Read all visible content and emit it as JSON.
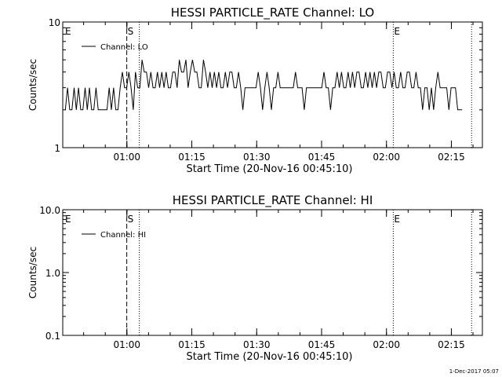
{
  "chart_data": [
    {
      "type": "line",
      "title": "HESSI PARTICLE_RATE Channel: LO",
      "xlabel": "Start Time (20-Nov-16 00:45:10)",
      "ylabel": "Counts/sec",
      "y_scale": "log",
      "ylim": [
        1,
        10
      ],
      "y_ticks": [
        "1",
        "10"
      ],
      "x_range_minutes": [
        0,
        97
      ],
      "x_ticks": [
        {
          "label": "01:00",
          "minute": 14.83
        },
        {
          "label": "01:15",
          "minute": 29.83
        },
        {
          "label": "01:30",
          "minute": 44.83
        },
        {
          "label": "01:45",
          "minute": 59.83
        },
        {
          "label": "02:00",
          "minute": 74.83
        },
        {
          "label": "02:15",
          "minute": 89.83
        }
      ],
      "legend": {
        "position": "top-left",
        "label": "Channel: LO"
      },
      "markers": [
        {
          "label": "E",
          "minute": 0.0,
          "style": "none"
        },
        {
          "label": "S",
          "minute": 14.8,
          "style": "dashed"
        },
        {
          "label": "",
          "minute": 17.7,
          "style": "dotted"
        },
        {
          "label": "E",
          "minute": 76.4,
          "style": "dotted"
        },
        {
          "label": "",
          "minute": 94.5,
          "style": "dotted"
        }
      ],
      "series": [
        {
          "name": "Channel: LO",
          "values": [
            2,
            3,
            2,
            2,
            3,
            2,
            3,
            2,
            2,
            3,
            2,
            3,
            2,
            2,
            3,
            2,
            2,
            2,
            2,
            2,
            3,
            2,
            3,
            2,
            2,
            3,
            4,
            3,
            3,
            4,
            3,
            2,
            4,
            3,
            3,
            5,
            4,
            4,
            3,
            4,
            3,
            3,
            4,
            3,
            4,
            3,
            4,
            3,
            3,
            4,
            4,
            3,
            5,
            4,
            4,
            5,
            3,
            4,
            5,
            4,
            4,
            3,
            3,
            5,
            4,
            3,
            4,
            3,
            4,
            3,
            4,
            3,
            3,
            4,
            3,
            4,
            4,
            3,
            3,
            4,
            3,
            2,
            3,
            3,
            3,
            3,
            3,
            3,
            4,
            3,
            2,
            3,
            4,
            3,
            2,
            3,
            3,
            4,
            3,
            3,
            3,
            3,
            3,
            3,
            3,
            4,
            3,
            3,
            3,
            2,
            3,
            3,
            3,
            3,
            3,
            3,
            3,
            3,
            4,
            3,
            3,
            2,
            3,
            3,
            4,
            3,
            4,
            3,
            3,
            4,
            3,
            4,
            3,
            4,
            4,
            3,
            3,
            4,
            3,
            4,
            3,
            4,
            3,
            4,
            4,
            3,
            3,
            4,
            4,
            3,
            4,
            3,
            3,
            4,
            3,
            3,
            4,
            4,
            3,
            3,
            4,
            3,
            3,
            2,
            3,
            3,
            2,
            3,
            2,
            3,
            4,
            3,
            3,
            3,
            3,
            2,
            3,
            3,
            3,
            2,
            2,
            2
          ]
        }
      ]
    },
    {
      "type": "line",
      "title": "HESSI PARTICLE_RATE Channel: HI",
      "xlabel": "Start Time (20-Nov-16 00:45:10)",
      "ylabel": "Counts/sec",
      "y_scale": "log",
      "ylim": [
        0.1,
        10
      ],
      "y_ticks": [
        "0.1",
        "1.0",
        "10.0"
      ],
      "x_range_minutes": [
        0,
        97
      ],
      "x_ticks": [
        {
          "label": "01:00",
          "minute": 14.83
        },
        {
          "label": "01:15",
          "minute": 29.83
        },
        {
          "label": "01:30",
          "minute": 44.83
        },
        {
          "label": "01:45",
          "minute": 59.83
        },
        {
          "label": "02:00",
          "minute": 74.83
        },
        {
          "label": "02:15",
          "minute": 89.83
        }
      ],
      "legend": {
        "position": "top-left",
        "label": "Channel: HI"
      },
      "markers": [
        {
          "label": "E",
          "minute": 0.0,
          "style": "none"
        },
        {
          "label": "S",
          "minute": 14.8,
          "style": "dashed"
        },
        {
          "label": "",
          "minute": 17.7,
          "style": "dotted"
        },
        {
          "label": "E",
          "minute": 76.4,
          "style": "dotted"
        },
        {
          "label": "",
          "minute": 94.5,
          "style": "dotted"
        }
      ],
      "series": [
        {
          "name": "Channel: HI",
          "values": []
        }
      ]
    }
  ],
  "footer": "1-Dec-2017 05:07"
}
